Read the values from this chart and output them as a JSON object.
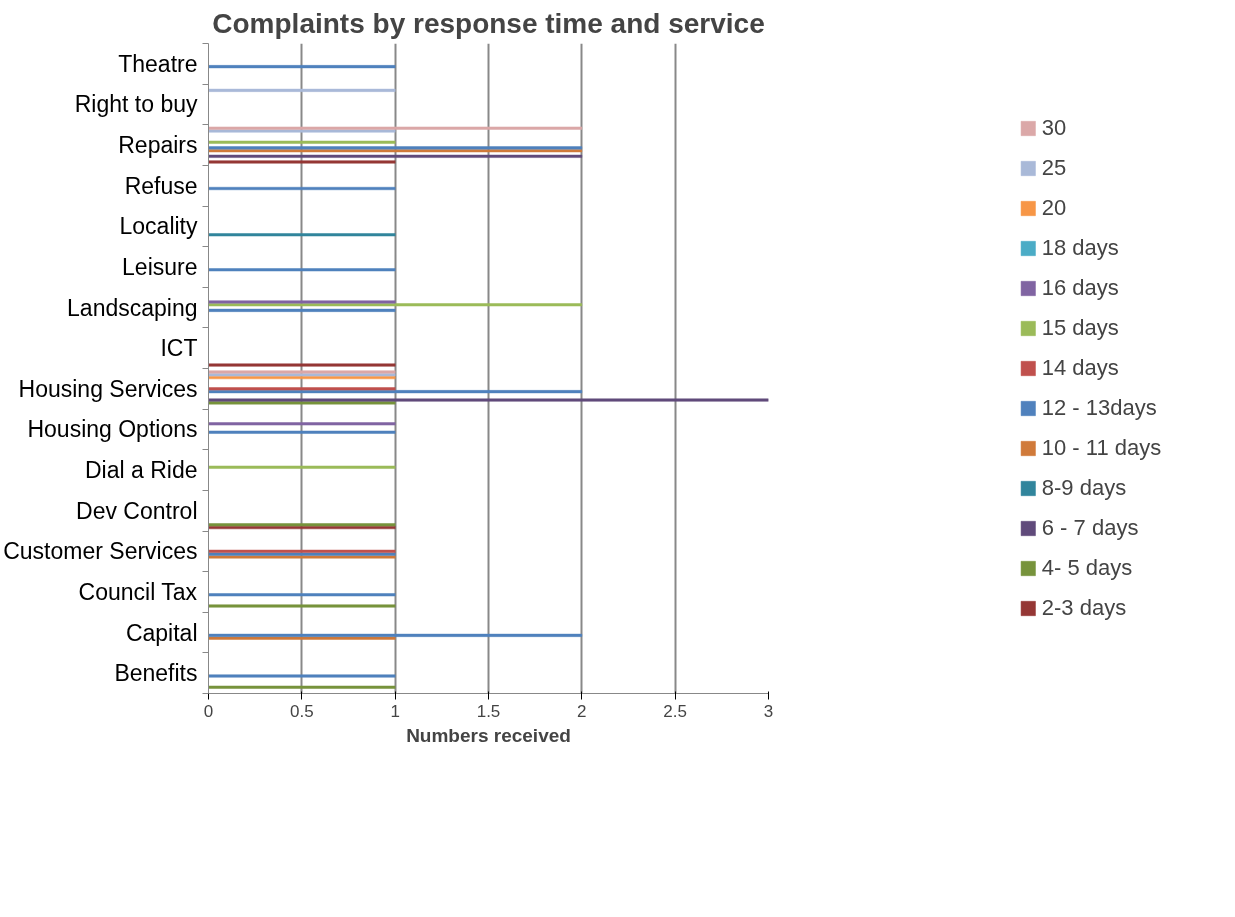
{
  "chart_data": {
    "type": "bar",
    "orientation": "horizontal",
    "title": "Complaints by response time and service",
    "xlabel": "Numbers received",
    "categories": [
      "Theatre",
      "Right to buy",
      "Repairs",
      "Refuse",
      "Locality",
      "Leisure",
      "Landscaping",
      "ICT",
      "Housing Services",
      "Housing Options",
      "Dial a Ride",
      "Dev Control",
      "Customer Services",
      "Council Tax",
      "Capital",
      "Benefits"
    ],
    "xlim": [
      0,
      3
    ],
    "xticks": [
      0,
      0.5,
      1,
      1.5,
      2,
      2.5,
      3
    ],
    "grid": "x",
    "legend": "right",
    "series": [
      {
        "name": "2-3 days",
        "color": "#953735",
        "values": [
          null,
          null,
          1,
          null,
          null,
          null,
          null,
          1,
          null,
          null,
          null,
          1,
          null,
          null,
          null,
          null
        ]
      },
      {
        "name": "4- 5 days",
        "color": "#77933c",
        "values": [
          null,
          null,
          null,
          null,
          null,
          null,
          null,
          null,
          1,
          null,
          null,
          1,
          null,
          1,
          null,
          1
        ]
      },
      {
        "name": "6 - 7 days",
        "color": "#604a7b",
        "values": [
          null,
          null,
          2,
          null,
          null,
          null,
          null,
          null,
          3,
          null,
          null,
          null,
          null,
          null,
          null,
          null
        ]
      },
      {
        "name": "8-9 days",
        "color": "#31859c",
        "values": [
          null,
          null,
          null,
          null,
          1,
          null,
          null,
          null,
          null,
          null,
          null,
          null,
          null,
          null,
          null,
          null
        ]
      },
      {
        "name": "10 - 11 days",
        "color": "#d07a3a",
        "values": [
          null,
          null,
          2,
          null,
          null,
          null,
          null,
          null,
          null,
          null,
          null,
          null,
          1,
          null,
          1,
          null
        ]
      },
      {
        "name": "12 - 13days",
        "color": "#4f81bd",
        "values": [
          1,
          null,
          2,
          1,
          null,
          1,
          1,
          null,
          2,
          1,
          null,
          null,
          1,
          1,
          2,
          1
        ]
      },
      {
        "name": "14 days",
        "color": "#c0504d",
        "values": [
          null,
          null,
          null,
          null,
          null,
          null,
          null,
          null,
          1,
          null,
          null,
          null,
          1,
          null,
          null,
          null
        ]
      },
      {
        "name": "15 days",
        "color": "#9bbb59",
        "values": [
          null,
          null,
          1,
          null,
          null,
          null,
          2,
          null,
          null,
          null,
          1,
          null,
          null,
          null,
          null,
          null
        ]
      },
      {
        "name": "16 days",
        "color": "#8064a2",
        "values": [
          null,
          null,
          null,
          null,
          null,
          null,
          1,
          null,
          null,
          1,
          null,
          null,
          null,
          null,
          null,
          null
        ]
      },
      {
        "name": "18 days",
        "color": "#4bacc6",
        "values": [
          null,
          null,
          null,
          null,
          null,
          null,
          null,
          null,
          null,
          null,
          null,
          null,
          null,
          null,
          null,
          null
        ]
      },
      {
        "name": "20",
        "color": "#f79646",
        "values": [
          null,
          null,
          null,
          null,
          null,
          null,
          null,
          null,
          1,
          null,
          null,
          null,
          null,
          null,
          null,
          null
        ]
      },
      {
        "name": "25",
        "color": "#a9b9d8",
        "values": [
          null,
          1,
          1,
          null,
          null,
          null,
          null,
          null,
          1,
          null,
          null,
          null,
          null,
          null,
          null,
          null
        ]
      },
      {
        "name": "30",
        "color": "#dba8a8",
        "values": [
          null,
          null,
          2,
          null,
          null,
          null,
          null,
          null,
          1,
          null,
          null,
          null,
          null,
          null,
          null,
          null
        ]
      }
    ]
  }
}
